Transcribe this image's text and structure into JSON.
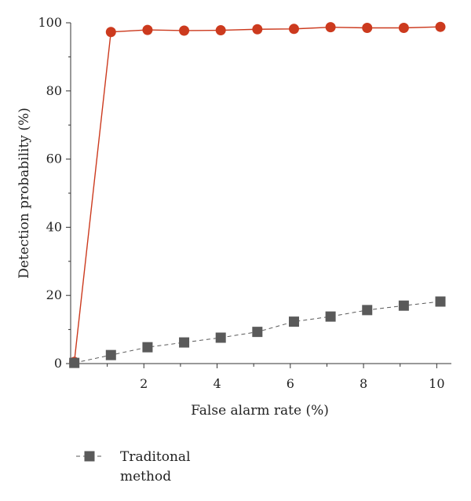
{
  "chart_data": {
    "type": "line",
    "title": "",
    "xlabel": "False alarm rate (%)",
    "ylabel": "Detection probability (%)",
    "xlim": [
      0,
      10.4
    ],
    "ylim": [
      0,
      100
    ],
    "xticks": [
      2,
      4,
      6,
      8,
      10
    ],
    "yticks": [
      0,
      20,
      40,
      60,
      80,
      100
    ],
    "grid": false,
    "legend_position": "bottom-left",
    "series": [
      {
        "name": "",
        "color": "#cc3a1e",
        "marker": "circle",
        "line_style": "solid",
        "x": [
          0.1,
          1.1,
          2.1,
          3.1,
          4.1,
          5.1,
          6.1,
          7.1,
          8.1,
          9.1,
          10.1
        ],
        "y": [
          0.5,
          97.3,
          97.9,
          97.7,
          97.8,
          98.1,
          98.2,
          98.7,
          98.5,
          98.5,
          98.8
        ]
      },
      {
        "name": "Traditonal method",
        "color": "#5a5a5a",
        "marker": "square",
        "line_style": "dashed",
        "x": [
          0.1,
          1.1,
          2.1,
          3.1,
          4.1,
          5.1,
          6.1,
          7.1,
          8.1,
          9.1,
          10.1
        ],
        "y": [
          0.2,
          2.5,
          4.8,
          6.2,
          7.6,
          9.3,
          12.3,
          13.8,
          15.7,
          17.0,
          18.2
        ]
      }
    ]
  }
}
